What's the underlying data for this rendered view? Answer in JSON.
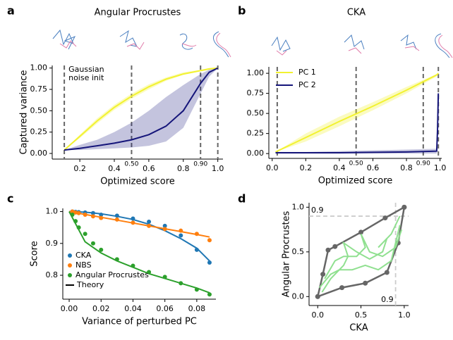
{
  "chart_data": [
    {
      "type": "line",
      "panel_label": "a",
      "title": "Angular Procrustes",
      "x_label": "Optimized score",
      "y_label": "Captured variance",
      "annotation": [
        "Gaussian",
        "noise init"
      ],
      "xlim": [
        0.04,
        1.03
      ],
      "ylim": [
        -0.066,
        1.03
      ],
      "xticks": [
        0.2,
        0.4,
        0.6,
        0.8,
        {
          "value": 1,
          "label": "1.0"
        }
      ],
      "yticks": [
        {
          "value": 0,
          "label": "0.00"
        },
        0.25,
        {
          "value": 0.5,
          "label": "0.50"
        },
        0.75,
        {
          "value": 1,
          "label": "1.00"
        }
      ],
      "vlines": [
        0.11,
        {
          "value": 0.5,
          "label": "0.50"
        },
        {
          "value": 0.9,
          "label": "0.90"
        },
        1.0
      ],
      "x": [
        0.11,
        0.2,
        0.3,
        0.4,
        0.5,
        0.6,
        0.7,
        0.8,
        0.9,
        0.95,
        1.0
      ],
      "series": [
        {
          "color": "#f2f230",
          "values": [
            0.04,
            0.2,
            0.38,
            0.54,
            0.67,
            0.78,
            0.87,
            0.93,
            0.97,
            0.99,
            1.0
          ],
          "lower": [
            0.04,
            0.18,
            0.35,
            0.51,
            0.64,
            0.75,
            0.85,
            0.92,
            0.96,
            0.98,
            1.0
          ],
          "upper": [
            0.04,
            0.22,
            0.41,
            0.57,
            0.7,
            0.81,
            0.89,
            0.95,
            0.98,
            1.0,
            1.0
          ]
        },
        {
          "color": "#15157a",
          "values": [
            0.04,
            0.06,
            0.09,
            0.12,
            0.16,
            0.22,
            0.32,
            0.5,
            0.82,
            0.95,
            1.0
          ],
          "lower": [
            0.04,
            0.04,
            0.05,
            0.06,
            0.07,
            0.09,
            0.14,
            0.3,
            0.7,
            0.9,
            1.0
          ],
          "upper": [
            0.04,
            0.1,
            0.16,
            0.25,
            0.36,
            0.5,
            0.66,
            0.8,
            0.93,
            0.98,
            1.0
          ]
        }
      ]
    },
    {
      "type": "line",
      "panel_label": "b",
      "title": "CKA",
      "x_label": "Optimized score",
      "xlim": [
        -0.02,
        1.01
      ],
      "ylim": [
        -0.06,
        1.08
      ],
      "legend": "upper left",
      "xticks": [
        {
          "value": 0,
          "label": "0.0"
        },
        0.2,
        0.4,
        0.6,
        0.8,
        {
          "value": 1,
          "label": "1.0"
        }
      ],
      "yticks": [
        {
          "value": 0,
          "label": "0.00"
        },
        0.25,
        {
          "value": 0.5,
          "label": "0.50"
        },
        0.75,
        {
          "value": 1,
          "label": "1.00"
        }
      ],
      "vlines": [
        0.03,
        {
          "value": 0.5,
          "label": "0.50"
        },
        {
          "value": 0.9,
          "label": "0.90"
        },
        0.99
      ],
      "x": [
        0.02,
        0.2,
        0.4,
        0.6,
        0.8,
        0.98,
        0.985,
        0.99
      ],
      "series": [
        {
          "name": "PC 1",
          "color": "#f2f230",
          "values": [
            0.02,
            0.2,
            0.4,
            0.59,
            0.79,
            0.98,
            0.99,
            1.0
          ],
          "lower": [
            0.02,
            0.15,
            0.34,
            0.54,
            0.75,
            0.96,
            0.98,
            1.0
          ],
          "upper": [
            0.02,
            0.25,
            0.46,
            0.64,
            0.83,
            0.99,
            1.0,
            1.0
          ]
        },
        {
          "name": "PC 2",
          "color": "#15157a",
          "values": [
            0.01,
            0.01,
            0.01,
            0.015,
            0.02,
            0.03,
            0.3,
            0.75
          ],
          "lower": [
            0.0,
            0.0,
            0.0,
            0.0,
            0.0,
            0.0,
            0.2,
            0.7
          ],
          "upper": [
            0.02,
            0.02,
            0.03,
            0.04,
            0.05,
            0.06,
            0.4,
            0.78
          ]
        }
      ]
    },
    {
      "type": "scatter",
      "panel_label": "c",
      "x_label": "Variance of perturbed PC",
      "y_label": "Score",
      "xlim": [
        -0.004,
        0.092
      ],
      "ylim": [
        0.725,
        1.01
      ],
      "legend": "lower left",
      "theory_label": "Theory",
      "theory_color": "#000000",
      "xticks": [
        {
          "value": 0,
          "label": "0.00"
        },
        0.02,
        0.04,
        0.06,
        0.08
      ],
      "yticks": [
        0.8,
        0.9,
        {
          "value": 1,
          "label": "1.0"
        }
      ],
      "x": [
        0.002,
        0.004,
        0.006,
        0.01,
        0.015,
        0.02,
        0.03,
        0.04,
        0.05,
        0.06,
        0.07,
        0.08,
        0.088
      ],
      "fit_x": [
        0,
        0.01,
        0.02,
        0.03,
        0.04,
        0.05,
        0.06,
        0.07,
        0.08,
        0.088
      ],
      "series": [
        {
          "name": "CKA",
          "color": "#1f77b4",
          "values": [
            1.0,
            0.999,
            0.998,
            0.997,
            0.995,
            0.99,
            0.987,
            0.978,
            0.968,
            0.955,
            0.925,
            0.88,
            0.84
          ],
          "fit": [
            1.0,
            0.998,
            0.993,
            0.985,
            0.975,
            0.96,
            0.94,
            0.915,
            0.885,
            0.845
          ]
        },
        {
          "name": "NBS",
          "color": "#ff7f0e",
          "values": [
            1.0,
            0.997,
            0.995,
            0.99,
            0.985,
            0.98,
            0.975,
            0.965,
            0.955,
            0.945,
            0.94,
            0.93,
            0.91
          ],
          "fit": [
            1.0,
            0.991,
            0.982,
            0.973,
            0.964,
            0.955,
            0.946,
            0.937,
            0.928,
            0.92
          ]
        },
        {
          "name": "Angular Procrustes",
          "color": "#2ca02c",
          "values": [
            0.99,
            0.97,
            0.95,
            0.93,
            0.9,
            0.88,
            0.85,
            0.83,
            0.81,
            0.795,
            0.775,
            0.755,
            0.74
          ],
          "fit": [
            1.0,
            0.905,
            0.87,
            0.845,
            0.825,
            0.805,
            0.79,
            0.775,
            0.76,
            0.745
          ]
        }
      ]
    },
    {
      "type": "line",
      "panel_label": "d",
      "x_label": "CKA",
      "y_label": "Angular Procrustes",
      "xlim": [
        -0.1,
        1.05
      ],
      "ylim": [
        -0.1,
        1.05
      ],
      "xticks": [
        {
          "value": 0,
          "label": "0.0"
        },
        0.5,
        {
          "value": 1,
          "label": "1.0"
        }
      ],
      "yticks": [
        {
          "value": 0,
          "label": "0.0"
        },
        0.5,
        {
          "value": 1,
          "label": "1.0"
        }
      ],
      "hlines": [
        0.9
      ],
      "vlines": [
        0.9
      ],
      "series": [
        {
          "color": "#666666",
          "markers": true,
          "x": [
            0,
            0.28,
            0.55,
            0.8,
            0.93,
            1.0
          ],
          "values": [
            0,
            0.1,
            0.15,
            0.27,
            0.6,
            1.0
          ]
        },
        {
          "color": "#666666",
          "markers": true,
          "x": [
            0,
            0.06,
            0.12,
            0.2,
            0.5,
            0.78,
            1.0
          ],
          "values": [
            0,
            0.25,
            0.52,
            0.56,
            0.72,
            0.88,
            1.0
          ]
        },
        {
          "color": "#90e090",
          "x": [
            0.05,
            0.15,
            0.3,
            0.35,
            0.3,
            0.45,
            0.6,
            0.75,
            0.8,
            0.7,
            0.85,
            0.95
          ],
          "values": [
            0.05,
            0.2,
            0.35,
            0.45,
            0.6,
            0.5,
            0.42,
            0.5,
            0.65,
            0.55,
            0.7,
            0.9
          ]
        },
        {
          "color": "#90e090",
          "x": [
            0.08,
            0.2,
            0.3,
            0.45,
            0.55,
            0.5,
            0.6,
            0.75,
            0.9,
            0.97
          ],
          "values": [
            0.2,
            0.4,
            0.45,
            0.45,
            0.55,
            0.7,
            0.5,
            0.45,
            0.55,
            0.75
          ]
        },
        {
          "color": "#90e090",
          "x": [
            0.02,
            0.15,
            0.25,
            0.4,
            0.55,
            0.7,
            0.85,
            0.95
          ],
          "values": [
            0.1,
            0.25,
            0.3,
            0.3,
            0.35,
            0.3,
            0.4,
            0.8
          ]
        }
      ]
    }
  ]
}
